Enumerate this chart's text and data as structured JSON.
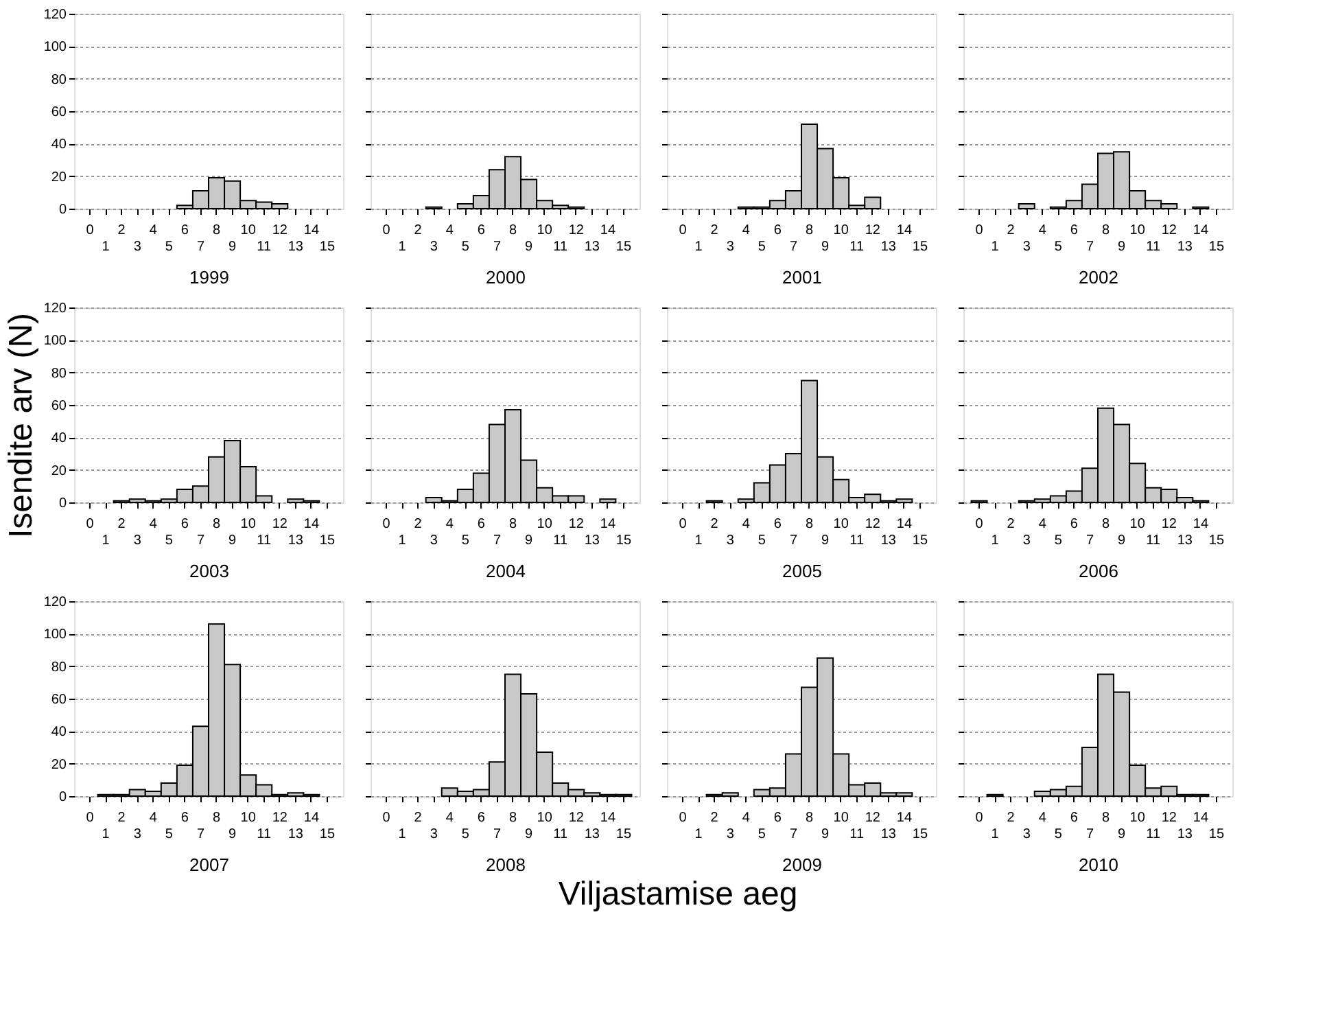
{
  "chart_data": [
    {
      "type": "bar",
      "xlabel": "1999",
      "categories": [
        "0",
        "1",
        "2",
        "3",
        "4",
        "5",
        "6",
        "7",
        "8",
        "9",
        "10",
        "11",
        "12",
        "13",
        "14",
        "15"
      ],
      "values": [
        0,
        0,
        0,
        0,
        0,
        0,
        2,
        11,
        19,
        17,
        5,
        4,
        3,
        0,
        0,
        0
      ],
      "color": "#c8c8c8",
      "ylim": [
        0,
        120
      ],
      "yticks": [
        0,
        20,
        40,
        60,
        80,
        100,
        120
      ],
      "grid": "y"
    },
    {
      "type": "bar",
      "xlabel": "2000",
      "categories": [
        "0",
        "1",
        "2",
        "3",
        "4",
        "5",
        "6",
        "7",
        "8",
        "9",
        "10",
        "11",
        "12",
        "13",
        "14",
        "15"
      ],
      "values": [
        0,
        0,
        0,
        1,
        0,
        3,
        8,
        24,
        32,
        18,
        5,
        2,
        1,
        0,
        0,
        0
      ],
      "color": "#c8c8c8",
      "ylim": [
        0,
        120
      ],
      "yticks": [
        0,
        20,
        40,
        60,
        80,
        100,
        120
      ],
      "grid": "y",
      "tick_labels": "x"
    },
    {
      "type": "bar",
      "xlabel": "2001",
      "categories": [
        "0",
        "1",
        "2",
        "3",
        "4",
        "5",
        "6",
        "7",
        "8",
        "9",
        "10",
        "11",
        "12",
        "13",
        "14",
        "15"
      ],
      "values": [
        0,
        0,
        0,
        0,
        1,
        1,
        5,
        11,
        52,
        37,
        19,
        2,
        7,
        0,
        0,
        0
      ],
      "color": "#c8c8c8",
      "ylim": [
        0,
        120
      ],
      "yticks": [
        0,
        20,
        40,
        60,
        80,
        100,
        120
      ],
      "grid": "y",
      "tick_labels": "x"
    },
    {
      "type": "bar",
      "xlabel": "2002",
      "categories": [
        "0",
        "1",
        "2",
        "3",
        "4",
        "5",
        "6",
        "7",
        "8",
        "9",
        "10",
        "11",
        "12",
        "13",
        "14",
        "15"
      ],
      "values": [
        0,
        0,
        0,
        3,
        0,
        1,
        5,
        15,
        34,
        35,
        11,
        5,
        3,
        0,
        1,
        0
      ],
      "color": "#c8c8c8",
      "ylim": [
        0,
        120
      ],
      "yticks": [
        0,
        20,
        40,
        60,
        80,
        100,
        120
      ],
      "grid": "y",
      "tick_labels": "x"
    },
    {
      "type": "bar",
      "xlabel": "2003",
      "ylabel": "Isendite arv (N)",
      "categories": [
        "0",
        "1",
        "2",
        "3",
        "4",
        "5",
        "6",
        "7",
        "8",
        "9",
        "10",
        "11",
        "12",
        "13",
        "14",
        "15"
      ],
      "values": [
        0,
        0,
        1,
        2,
        1,
        2,
        8,
        10,
        28,
        38,
        22,
        4,
        0,
        2,
        1,
        0
      ],
      "color": "#c8c8c8",
      "ylim": [
        0,
        120
      ],
      "yticks": [
        0,
        20,
        40,
        60,
        80,
        100,
        120
      ],
      "grid": "y"
    },
    {
      "type": "bar",
      "xlabel": "2004",
      "categories": [
        "0",
        "1",
        "2",
        "3",
        "4",
        "5",
        "6",
        "7",
        "8",
        "9",
        "10",
        "11",
        "12",
        "13",
        "14",
        "15"
      ],
      "values": [
        0,
        0,
        0,
        3,
        1,
        8,
        18,
        48,
        57,
        26,
        9,
        4,
        4,
        0,
        2,
        0
      ],
      "color": "#c8c8c8",
      "ylim": [
        0,
        120
      ],
      "yticks": [
        0,
        20,
        40,
        60,
        80,
        100,
        120
      ],
      "grid": "y",
      "tick_labels": "x"
    },
    {
      "type": "bar",
      "xlabel": "2005",
      "categories": [
        "0",
        "1",
        "2",
        "3",
        "4",
        "5",
        "6",
        "7",
        "8",
        "9",
        "10",
        "11",
        "12",
        "13",
        "14",
        "15"
      ],
      "values": [
        0,
        0,
        1,
        0,
        2,
        12,
        23,
        30,
        75,
        28,
        14,
        3,
        5,
        1,
        2,
        0
      ],
      "color": "#c8c8c8",
      "ylim": [
        0,
        120
      ],
      "yticks": [
        0,
        20,
        40,
        60,
        80,
        100,
        120
      ],
      "grid": "y",
      "tick_labels": "x"
    },
    {
      "type": "bar",
      "xlabel": "2006",
      "categories": [
        "0",
        "1",
        "2",
        "3",
        "4",
        "5",
        "6",
        "7",
        "8",
        "9",
        "10",
        "11",
        "12",
        "13",
        "14",
        "15"
      ],
      "values": [
        1,
        0,
        0,
        1,
        2,
        4,
        7,
        21,
        58,
        48,
        24,
        9,
        8,
        3,
        1,
        0
      ],
      "color": "#c8c8c8",
      "ylim": [
        0,
        120
      ],
      "yticks": [
        0,
        20,
        40,
        60,
        80,
        100,
        120
      ],
      "grid": "y",
      "tick_labels": "x"
    },
    {
      "type": "bar",
      "xlabel": "2007",
      "categories": [
        "0",
        "1",
        "2",
        "3",
        "4",
        "5",
        "6",
        "7",
        "8",
        "9",
        "10",
        "11",
        "12",
        "13",
        "14",
        "15"
      ],
      "values": [
        0,
        1,
        1,
        4,
        3,
        8,
        19,
        43,
        106,
        81,
        13,
        7,
        1,
        2,
        1,
        0
      ],
      "color": "#c8c8c8",
      "ylim": [
        0,
        120
      ],
      "yticks": [
        0,
        20,
        40,
        60,
        80,
        100,
        120
      ],
      "grid": "y"
    },
    {
      "type": "bar",
      "xlabel": "2008",
      "annotations": [
        "Viljastamise aeg"
      ],
      "categories": [
        "0",
        "1",
        "2",
        "3",
        "4",
        "5",
        "6",
        "7",
        "8",
        "9",
        "10",
        "11",
        "12",
        "13",
        "14",
        "15"
      ],
      "values": [
        0,
        0,
        0,
        0,
        5,
        3,
        4,
        21,
        75,
        63,
        27,
        8,
        4,
        2,
        1,
        1
      ],
      "color": "#c8c8c8",
      "ylim": [
        0,
        120
      ],
      "yticks": [
        0,
        20,
        40,
        60,
        80,
        100,
        120
      ],
      "grid": "y",
      "tick_labels": "x"
    },
    {
      "type": "bar",
      "xlabel": "2009",
      "categories": [
        "0",
        "1",
        "2",
        "3",
        "4",
        "5",
        "6",
        "7",
        "8",
        "9",
        "10",
        "11",
        "12",
        "13",
        "14",
        "15"
      ],
      "values": [
        0,
        0,
        1,
        2,
        0,
        4,
        5,
        26,
        67,
        85,
        26,
        7,
        8,
        2,
        2,
        0
      ],
      "color": "#c8c8c8",
      "ylim": [
        0,
        120
      ],
      "yticks": [
        0,
        20,
        40,
        60,
        80,
        100,
        120
      ],
      "grid": "y",
      "tick_labels": "x"
    },
    {
      "type": "bar",
      "xlabel": "2010",
      "categories": [
        "0",
        "1",
        "2",
        "3",
        "4",
        "5",
        "6",
        "7",
        "8",
        "9",
        "10",
        "11",
        "12",
        "13",
        "14",
        "15"
      ],
      "values": [
        0,
        1,
        0,
        0,
        3,
        4,
        6,
        30,
        75,
        64,
        19,
        5,
        6,
        1,
        1,
        0
      ],
      "color": "#c8c8c8",
      "ylim": [
        0,
        120
      ],
      "yticks": [
        0,
        20,
        40,
        60,
        80,
        100,
        120
      ],
      "grid": "y",
      "tick_labels": "x"
    }
  ]
}
